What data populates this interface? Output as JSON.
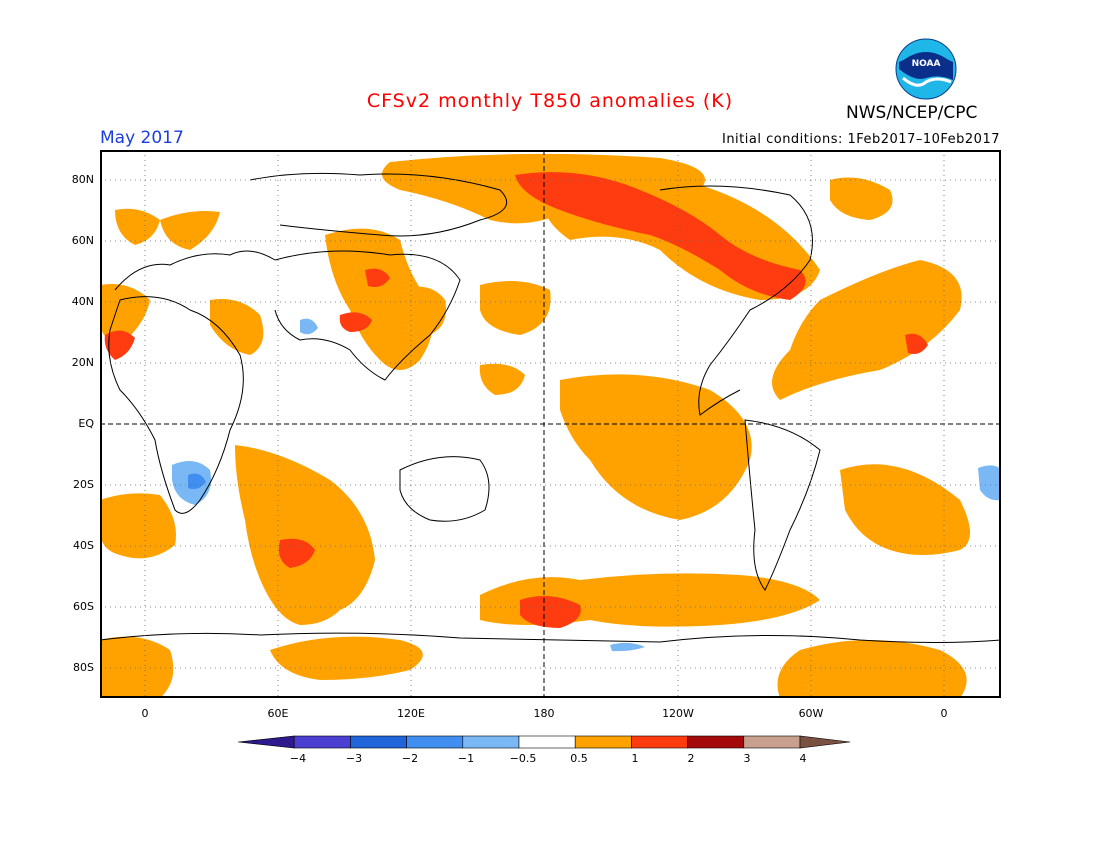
{
  "title": "CFSv2 monthly T850 anomalies (K)",
  "agency": "NWS/NCEP/CPC",
  "logo_text": "NOAA",
  "period": "May 2017",
  "initial_conditions": "Initial conditions: 1Feb2017–10Feb2017",
  "lat_labels": [
    "80N",
    "60N",
    "40N",
    "20N",
    "EQ",
    "20S",
    "40S",
    "60S",
    "80S"
  ],
  "lon_labels": [
    "0",
    "60E",
    "120E",
    "180",
    "120W",
    "60W",
    "0"
  ],
  "colorbar": {
    "labels": [
      "−4",
      "−3",
      "−2",
      "−1",
      "−0.5",
      "0.5",
      "1",
      "2",
      "3",
      "4"
    ],
    "colors": [
      "#2e1a8c",
      "#4a3fd0",
      "#1f64d8",
      "#3f8ef0",
      "#7ab8f5",
      "#ffffff",
      "#ffa200",
      "#ff3c10",
      "#a50a0a",
      "#c8a090",
      "#7a5040"
    ]
  },
  "colors": {
    "warm_1": "#ffa200",
    "warm_2": "#ff3c10",
    "cool_1": "#7ab8f5",
    "cool_2": "#3f8ef0",
    "title": "#ff0000",
    "period": "#1a3fe0"
  }
}
